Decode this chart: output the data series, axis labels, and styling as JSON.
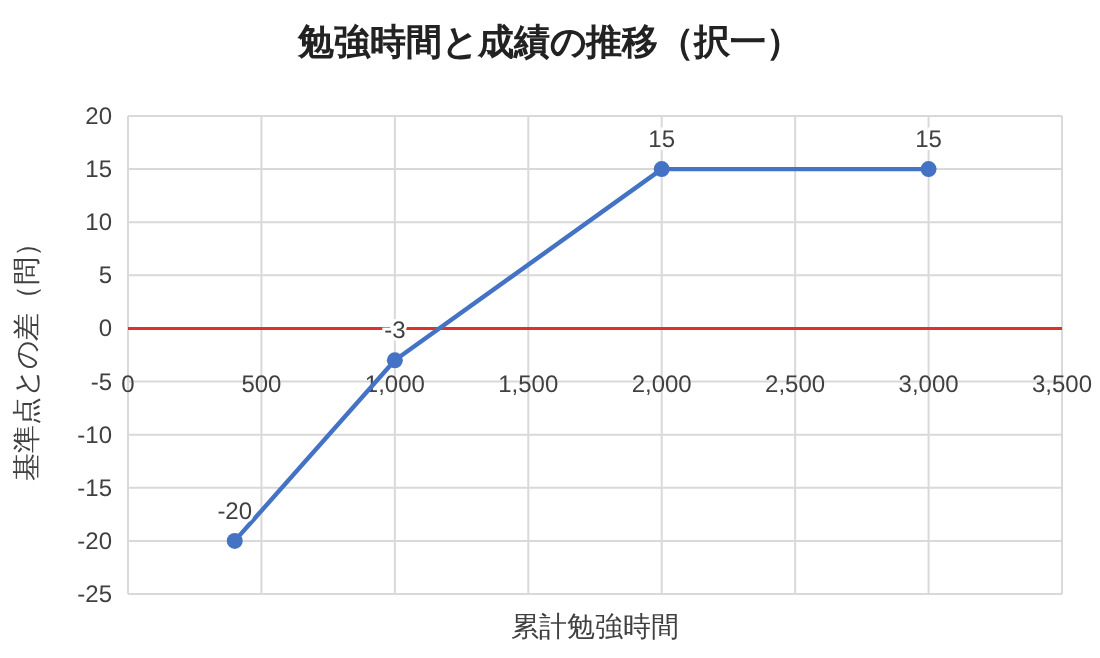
{
  "chart_data": {
    "type": "line",
    "title": "勉強時間と成績の推移（択一）",
    "xlabel": "累計勉強時間",
    "ylabel": "基準点との差（問）",
    "x": [
      400,
      1000,
      2000,
      3000
    ],
    "series": [
      {
        "color": "#4472c4",
        "values": [
          -20,
          -3,
          15,
          15
        ]
      }
    ],
    "xlim": [
      0,
      3500
    ],
    "xticks": [
      0,
      500,
      {
        "value": 1000,
        "label": "1,000"
      },
      {
        "value": 1500,
        "label": "1,500"
      },
      {
        "value": 2000,
        "label": "2,000"
      },
      {
        "value": 2500,
        "label": "2,500"
      },
      {
        "value": 3000,
        "label": "3,000"
      },
      {
        "value": 3500,
        "label": "3,500"
      }
    ],
    "ylim": [
      -25,
      20
    ],
    "yticks": [
      -25,
      -20,
      -15,
      -10,
      -5,
      0,
      5,
      10,
      15,
      20
    ],
    "grid": true,
    "marker": "circle",
    "line_style": "solid",
    "data_labels": true
  }
}
